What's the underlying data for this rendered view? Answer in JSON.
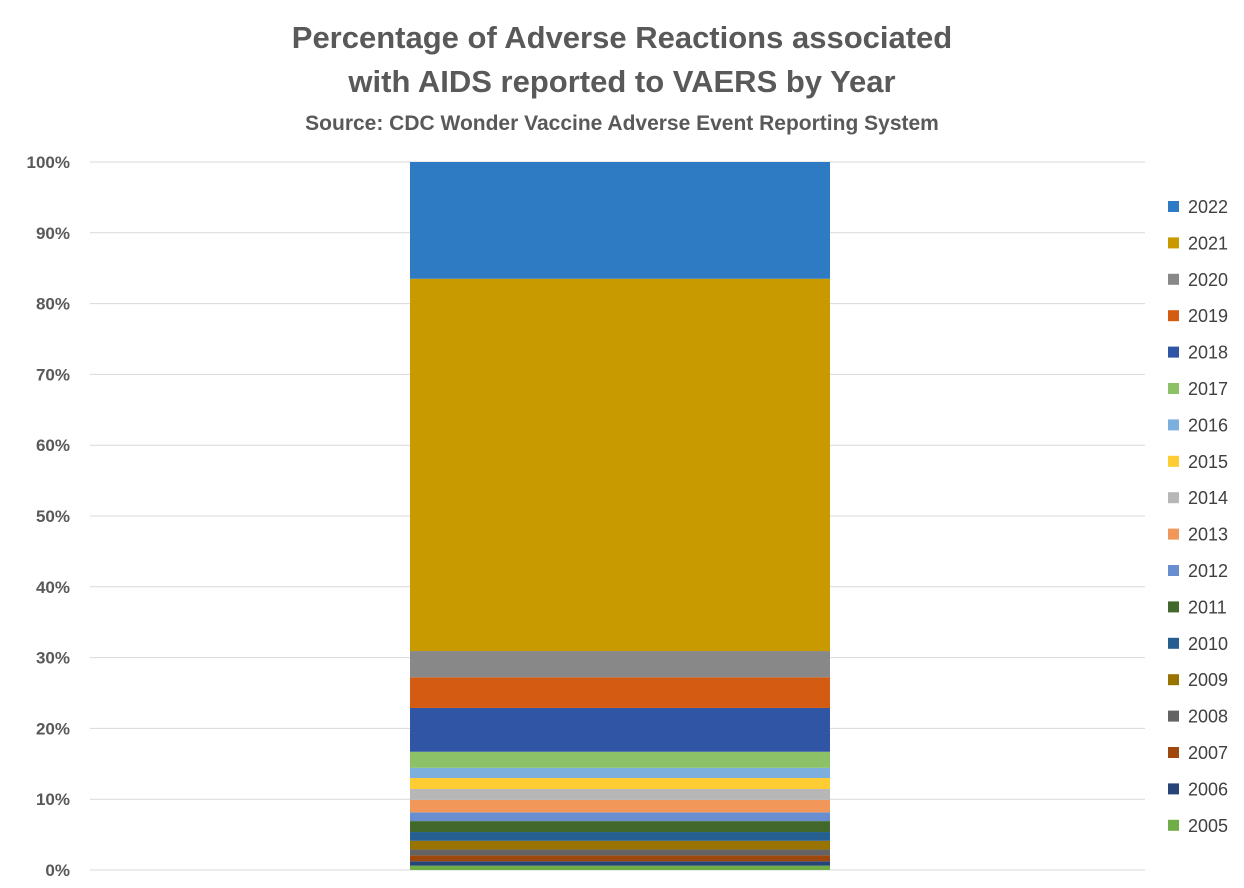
{
  "chart_data": {
    "type": "bar",
    "stacked": true,
    "percent_stacked": true,
    "title": "Percentage of Adverse Reactions associated",
    "title_line2": "with AIDS reported to VAERS by Year",
    "subtitle": "Source: CDC Wonder Vaccine Adverse Event Reporting System",
    "ylim": [
      0,
      100
    ],
    "yticks": [
      "0%",
      "10%",
      "20%",
      "30%",
      "40%",
      "50%",
      "60%",
      "70%",
      "80%",
      "90%",
      "100%"
    ],
    "grid": true,
    "legend": "right",
    "categories": [
      ""
    ],
    "series": [
      {
        "name": "2005",
        "values": [
          0.6
        ],
        "color": "#70ad47"
      },
      {
        "name": "2006",
        "values": [
          0.6
        ],
        "color": "#264478"
      },
      {
        "name": "2007",
        "values": [
          0.8
        ],
        "color": "#9e480e"
      },
      {
        "name": "2008",
        "values": [
          0.8
        ],
        "color": "#636363"
      },
      {
        "name": "2009",
        "values": [
          1.2
        ],
        "color": "#997300"
      },
      {
        "name": "2010",
        "values": [
          1.2
        ],
        "color": "#255e91"
      },
      {
        "name": "2011",
        "values": [
          1.5
        ],
        "color": "#43682b"
      },
      {
        "name": "2012",
        "values": [
          1.2
        ],
        "color": "#698ed0"
      },
      {
        "name": "2013",
        "values": [
          1.7
        ],
        "color": "#f1975a"
      },
      {
        "name": "2014",
        "values": [
          1.5
        ],
        "color": "#b7b7b7"
      },
      {
        "name": "2015",
        "values": [
          1.5
        ],
        "color": "#ffcd33"
      },
      {
        "name": "2016",
        "values": [
          1.4
        ],
        "color": "#7cafdd"
      },
      {
        "name": "2017",
        "values": [
          2.2
        ],
        "color": "#8cc168"
      },
      {
        "name": "2018",
        "values": [
          6.0
        ],
        "color": "#2f55a4"
      },
      {
        "name": "2019",
        "values": [
          4.2
        ],
        "color": "#d45c12"
      },
      {
        "name": "2020",
        "values": [
          3.6
        ],
        "color": "#888888"
      },
      {
        "name": "2021",
        "values": [
          51.0
        ],
        "color": "#c99a00"
      },
      {
        "name": "2022",
        "values": [
          16.0
        ],
        "color": "#2e7bc4"
      }
    ]
  }
}
